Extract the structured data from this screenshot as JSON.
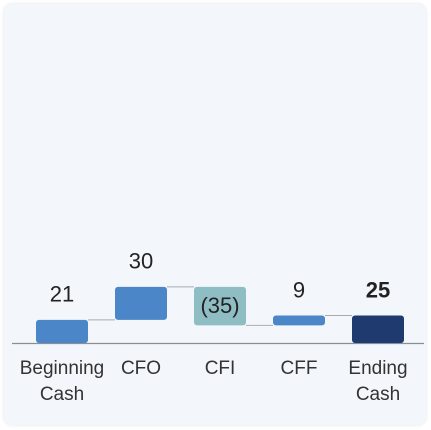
{
  "chart_data": {
    "type": "waterfall",
    "categories": [
      "Beginning Cash",
      "CFO",
      "CFI",
      "CFF",
      "Ending Cash"
    ],
    "values": [
      21,
      30,
      -35,
      9,
      25
    ],
    "value_labels": [
      "21",
      "30",
      "(35)",
      "9",
      "25"
    ],
    "is_total": [
      false,
      false,
      false,
      false,
      true
    ],
    "colors": [
      "#4a86c8",
      "#4a86c8",
      "#8fbdc4",
      "#4a86c8",
      "#1f3a6e"
    ]
  }
}
